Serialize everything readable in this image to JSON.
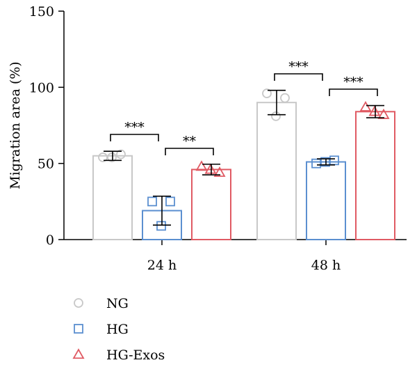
{
  "chart_data": {
    "type": "bar",
    "categories": [
      "24 h",
      "48 h"
    ],
    "ylabel": "Migration area (%)",
    "ylim": [
      0,
      150
    ],
    "yticks": [
      0,
      50,
      100,
      150
    ],
    "legend_position": "bottom-left",
    "series": [
      {
        "name": "NG",
        "color": "#c8c8c8",
        "marker": "circle",
        "values": [
          55,
          90
        ],
        "error": [
          3,
          8
        ],
        "points": [
          [
            54,
            56,
            54
          ],
          [
            96,
            93,
            81
          ]
        ]
      },
      {
        "name": "HG",
        "color": "#5b8fd0",
        "marker": "square",
        "values": [
          19,
          51
        ],
        "error": [
          9.5,
          2
        ],
        "points": [
          [
            25,
            25,
            9
          ],
          [
            50,
            52,
            51
          ]
        ]
      },
      {
        "name": "HG-Exos",
        "color": "#e05a63",
        "marker": "triangle",
        "values": [
          46,
          84
        ],
        "error": [
          3.5,
          4
        ],
        "points": [
          [
            48,
            44,
            46
          ],
          [
            87,
            82,
            84
          ]
        ]
      }
    ],
    "significance": [
      {
        "category": 0,
        "from": 0,
        "to": 1,
        "label": "***"
      },
      {
        "category": 0,
        "from": 1,
        "to": 2,
        "label": "**"
      },
      {
        "category": 1,
        "from": 0,
        "to": 1,
        "label": "***"
      },
      {
        "category": 1,
        "from": 1,
        "to": 2,
        "label": "***"
      }
    ]
  }
}
